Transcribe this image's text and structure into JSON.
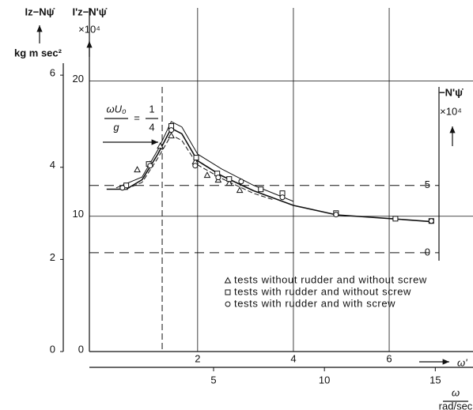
{
  "chart_data": {
    "type": "scatter",
    "grid": true,
    "x_axis": {
      "label": "ω'",
      "xlim": [
        -0.26,
        7.75
      ],
      "xticks": [
        2,
        4,
        6
      ]
    },
    "x2_axis": {
      "label": "ω",
      "unit": "rad/sec",
      "xlim": [
        -0.6,
        16.7
      ],
      "xticks": [
        5,
        10,
        15
      ]
    },
    "y_axis": {
      "label": "I'z−N'ψ̇",
      "scale_label": "×10⁴",
      "ylim": [
        0,
        25.4
      ],
      "yticks": [
        0,
        10,
        20
      ]
    },
    "y_outer_axis": {
      "label": "Iz−Nψ̇",
      "unit": "kg m sec²",
      "ylim": [
        0,
        7.46
      ],
      "yticks": [
        0,
        2,
        4,
        6
      ]
    },
    "y2_axis": {
      "label": "−N'ψ̇",
      "scale_label": "×10⁴",
      "ylim": [
        -7.35,
        18.2
      ],
      "yticks": [
        0,
        5
      ]
    },
    "marker_line": {
      "x": 1.26,
      "numerator": "ωU₀",
      "denominator": "g",
      "equals": "=",
      "value_numerator": "1",
      "value_denominator": "4"
    },
    "series": [
      {
        "name": "tests without rudder and without screw",
        "marker": "triangle",
        "x": [
          0.48,
          0.74,
          1.01,
          1.22,
          1.45,
          1.95,
          2.2,
          2.43,
          2.66,
          2.88
        ],
        "values": [
          12.16,
          13.45,
          13.86,
          15.2,
          15.96,
          14.04,
          13.04,
          12.69,
          12.46,
          11.93
        ]
      },
      {
        "name": "tests with rudder and without screw",
        "marker": "square",
        "x": [
          0.51,
          0.98,
          1.45,
          1.97,
          2.41,
          2.66,
          3.32,
          3.77,
          4.89,
          6.13,
          6.88
        ],
        "values": [
          12.28,
          13.86,
          16.67,
          14.33,
          13.16,
          12.75,
          11.99,
          11.7,
          10.23,
          9.82,
          9.65
        ]
      },
      {
        "name": "tests with rudder and with screw",
        "marker": "circle",
        "x": [
          0.43,
          1.01,
          1.45,
          1.95,
          2.43,
          2.91,
          3.77,
          4.89,
          6.88
        ],
        "values": [
          12.1,
          13.74,
          16.37,
          13.74,
          12.87,
          12.57,
          11.4,
          10.12,
          9.65
        ]
      }
    ],
    "curves": [
      {
        "style": "solid",
        "x": [
          0.1,
          0.51,
          0.84,
          1.17,
          1.45,
          1.67,
          2.0,
          2.5,
          3.16,
          4.0,
          4.9,
          6.13,
          6.88
        ],
        "values": [
          12.0,
          12.0,
          12.7,
          14.6,
          16.5,
          16.1,
          14.1,
          13.0,
          11.9,
          10.8,
          10.1,
          9.8,
          9.6
        ]
      },
      {
        "style": "solid",
        "x": [
          0.3,
          0.84,
          1.17,
          1.45,
          1.67,
          2.0,
          2.5,
          3.16,
          4.0
        ],
        "values": [
          12.1,
          12.9,
          14.9,
          17.0,
          16.6,
          14.6,
          13.5,
          12.3,
          11.1
        ]
      },
      {
        "style": "dashed",
        "x": [
          0.5,
          0.84,
          1.17,
          1.45,
          1.67,
          2.0,
          2.5,
          3.16,
          3.6
        ],
        "values": [
          12.0,
          12.5,
          14.3,
          16.0,
          15.6,
          13.8,
          12.8,
          11.7,
          11.2
        ]
      }
    ]
  }
}
